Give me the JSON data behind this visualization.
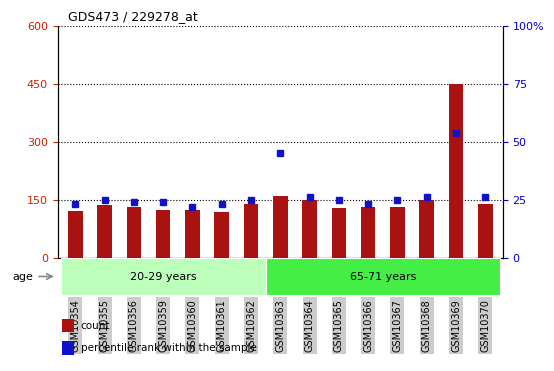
{
  "title": "GDS473 / 229278_at",
  "samples": [
    "GSM10354",
    "GSM10355",
    "GSM10356",
    "GSM10359",
    "GSM10360",
    "GSM10361",
    "GSM10362",
    "GSM10363",
    "GSM10364",
    "GSM10365",
    "GSM10366",
    "GSM10367",
    "GSM10368",
    "GSM10369",
    "GSM10370"
  ],
  "counts": [
    120,
    137,
    132,
    122,
    122,
    118,
    140,
    160,
    148,
    128,
    130,
    132,
    148,
    450,
    138
  ],
  "percentile_ranks": [
    23,
    25,
    24,
    24,
    22,
    23,
    25,
    45,
    26,
    25,
    23,
    25,
    26,
    54,
    26
  ],
  "bar_color": "#aa1111",
  "dot_color": "#1111cc",
  "ylim_left": [
    0,
    600
  ],
  "ylim_right": [
    0,
    100
  ],
  "yticks_left": [
    0,
    150,
    300,
    450,
    600
  ],
  "yticks_right": [
    0,
    25,
    50,
    75,
    100
  ],
  "groups": [
    {
      "label": "20-29 years",
      "start": 0,
      "end": 7,
      "color": "#bbffbb"
    },
    {
      "label": "65-71 years",
      "start": 7,
      "end": 15,
      "color": "#44ee44"
    }
  ],
  "age_label": "age",
  "legend_items": [
    {
      "label": "count",
      "color": "#aa1111"
    },
    {
      "label": "percentile rank within the sample",
      "color": "#1111cc"
    }
  ],
  "tick_label_color_left": "#cc2200",
  "tick_label_color_right": "#0000cc",
  "xticklabel_bg": "#cccccc",
  "n_group1": 7,
  "n_group2": 8
}
